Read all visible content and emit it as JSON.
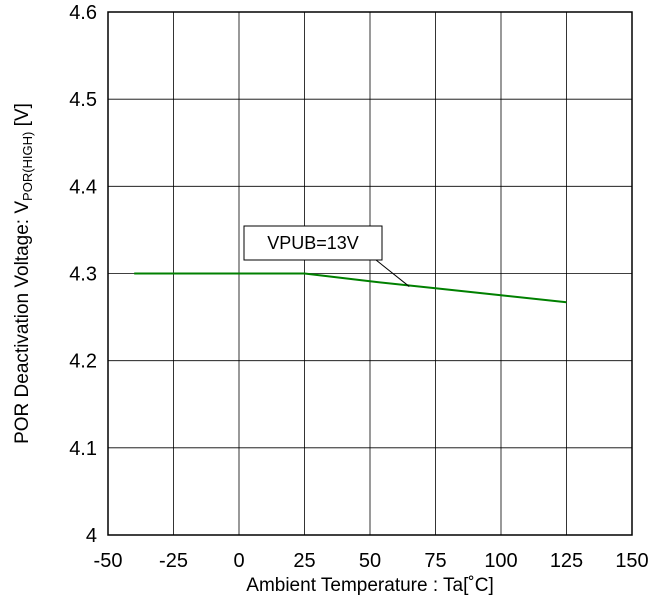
{
  "chart_data": {
    "type": "line",
    "xlabel": "Ambient Temperature : Ta[˚C]",
    "ylabel": {
      "prefix": "POR Deactivation Voltage: V",
      "subscript": "POR(HIGH)",
      "suffix": " [V]"
    },
    "xlim": [
      -50,
      150
    ],
    "ylim": [
      4.0,
      4.6
    ],
    "xticks": [
      "-50",
      "-25",
      "0",
      "25",
      "50",
      "75",
      "100",
      "125",
      "150"
    ],
    "yticks": [
      "4",
      "4.1",
      "4.2",
      "4.3",
      "4.4",
      "4.5",
      "4.6"
    ],
    "grid": true,
    "series": [
      {
        "name": "VPUB=13V",
        "color": "#008000",
        "x": [
          -40,
          25,
          50,
          75,
          100,
          125
        ],
        "y": [
          4.3,
          4.3,
          4.291,
          4.283,
          4.275,
          4.267
        ]
      }
    ],
    "annotation": {
      "text": "VPUB=13V",
      "target": {
        "x": 65,
        "y": 4.285
      }
    }
  }
}
